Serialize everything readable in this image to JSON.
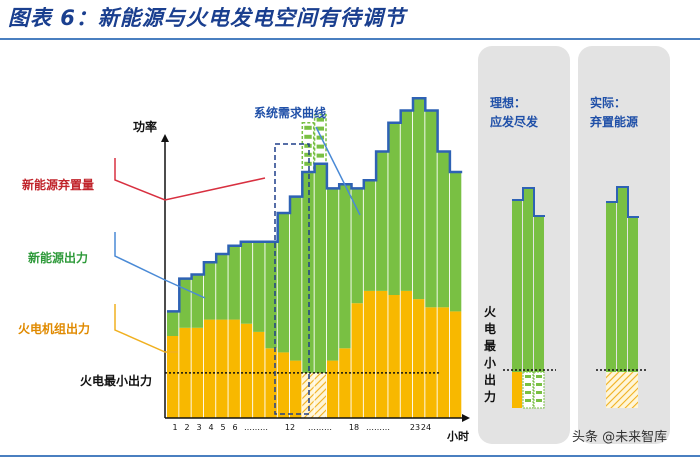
{
  "title": "图表 6：新能源与火电发电空间有待调节",
  "chart": {
    "y_axis_label": "功率",
    "x_axis_label": "小时",
    "x_ticks": [
      "1",
      "2",
      "3",
      "4",
      "5",
      "6",
      "………",
      "12",
      "………",
      "18",
      "………",
      "23",
      "24"
    ],
    "demand_curve_label": "系统需求曲线",
    "min_output_label": "火电最小出力",
    "legend": {
      "curtailment": "新能源弃置量",
      "renewable_output": "新能源出力",
      "thermal_output": "火电机组出力"
    }
  },
  "chart_data": {
    "type": "bar",
    "series": [
      {
        "name": "新能源出力",
        "values": [
          6,
          12,
          13,
          14,
          16,
          18,
          20,
          22,
          26,
          34,
          40,
          49,
          51,
          42,
          40,
          28,
          27,
          34,
          42,
          44,
          49,
          48,
          38,
          34
        ]
      },
      {
        "name": "火电机组出力",
        "values": [
          20,
          22,
          22,
          24,
          24,
          24,
          23,
          21,
          17,
          16,
          14,
          10,
          10,
          14,
          17,
          28,
          31,
          31,
          30,
          31,
          29,
          27,
          27,
          26
        ]
      },
      {
        "name": "新能源弃置量",
        "values": [
          0,
          0,
          0,
          0,
          0,
          0,
          0,
          0,
          0,
          0,
          0,
          12,
          12,
          0,
          0,
          0,
          0,
          0,
          0,
          0,
          0,
          0,
          0,
          0
        ]
      }
    ],
    "thermal_minimum": 11
  },
  "ideal_panel": {
    "title_line1": "理想：",
    "title_line2": "应发尽发",
    "side_label_chars": [
      "火",
      "电",
      "最",
      "小",
      "出",
      "力"
    ]
  },
  "actual_panel": {
    "title_line1": "实际：",
    "title_line2": "弃置能源"
  },
  "watermark": "头条 @未来智库",
  "colors": {
    "green": "#79c043",
    "yellow": "#f8b800",
    "demand_line": "#2e62b4",
    "red": "#c0242b",
    "title": "#1a3f8f"
  }
}
